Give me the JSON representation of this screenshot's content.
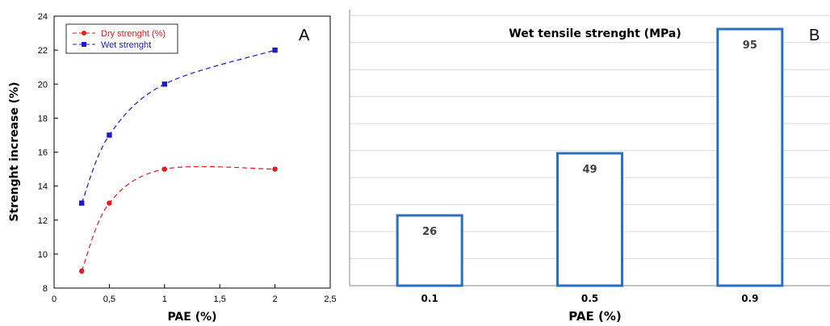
{
  "panels": {
    "a_label": "A",
    "b_label": "B"
  },
  "chart_data": [
    {
      "type": "line",
      "panel": "A",
      "title": "",
      "xlabel": "PAE (%)",
      "ylabel": "Strenght increase (%)",
      "xlim": [
        0,
        2.5
      ],
      "ylim": [
        8,
        24
      ],
      "x_ticks": [
        0,
        0.5,
        1,
        1.5,
        2,
        2.5
      ],
      "x_tick_labels": [
        "0",
        "0,5",
        "1",
        "1,5",
        "2",
        "2,5"
      ],
      "y_ticks": [
        8,
        10,
        12,
        14,
        16,
        18,
        20,
        22,
        24
      ],
      "y_tick_labels": [
        "8",
        "10",
        "12",
        "14",
        "16",
        "18",
        "20",
        "22",
        "24"
      ],
      "grid": false,
      "legend": "top-left",
      "series": [
        {
          "name": "Dry strenght (%)",
          "color": "#e8191c",
          "marker": "circle",
          "x": [
            0.25,
            0.5,
            1,
            2
          ],
          "y": [
            9,
            13,
            15,
            15
          ]
        },
        {
          "name": "Wet strenght",
          "color": "#1a1ad4",
          "marker": "square",
          "x": [
            0.25,
            0.5,
            1,
            2
          ],
          "y": [
            13,
            17,
            20,
            22
          ]
        }
      ]
    },
    {
      "type": "bar",
      "panel": "B",
      "title": "Wet tensile strenght (MPa)",
      "xlabel": "PAE (%)",
      "ylabel": "",
      "categories": [
        "0.1",
        "0.5",
        "0.9"
      ],
      "values": [
        26,
        49,
        95
      ],
      "data_labels": [
        "26",
        "49",
        "95"
      ],
      "ylim": [
        0,
        95
      ],
      "grid": true,
      "bar_style": "outline",
      "color": "#2a70c0"
    }
  ]
}
